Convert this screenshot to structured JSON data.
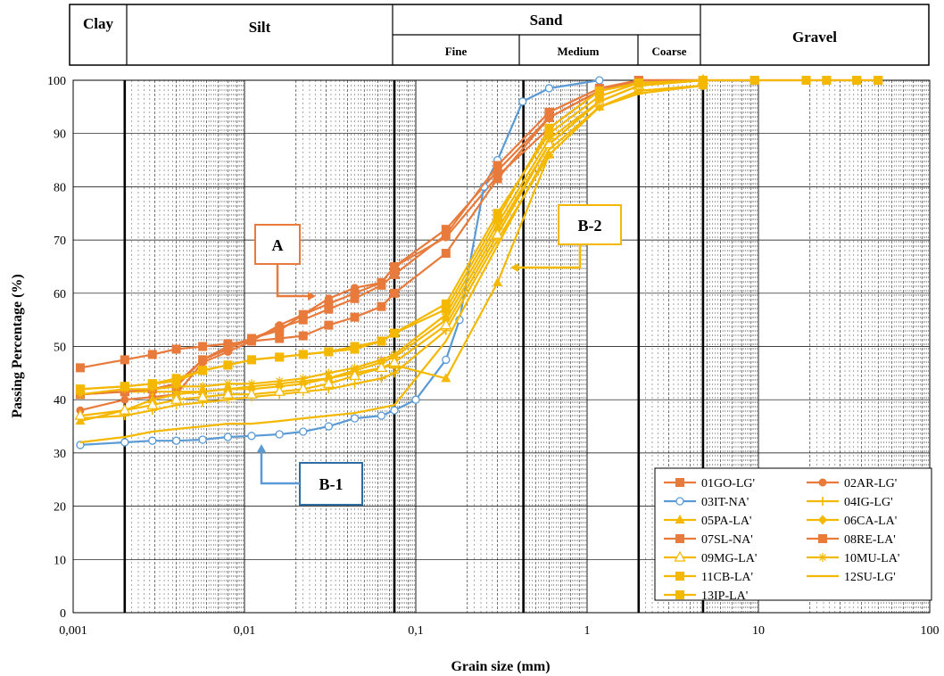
{
  "chart_data": {
    "type": "line",
    "title": "",
    "xlabel": "Grain size (mm)",
    "ylabel": "Passing Percentage (%)",
    "xscale": "log",
    "xlim": [
      0.001,
      100
    ],
    "ylim": [
      0,
      100
    ],
    "x_tick_labels": [
      "0,001",
      "0,01",
      "0,1",
      "1",
      "10",
      "100"
    ],
    "y_tick_labels": [
      "0",
      "10",
      "20",
      "30",
      "40",
      "50",
      "60",
      "70",
      "80",
      "90",
      "100"
    ],
    "grid": true,
    "classification": {
      "clay": "Clay",
      "silt": "Silt",
      "sand": "Sand",
      "fine": "Fine",
      "medium": "Medium",
      "coarse": "Coarse",
      "gravel": "Gravel",
      "boundaries_mm": [
        0.002,
        0.075,
        0.425,
        2,
        4.75
      ]
    },
    "annotations": [
      {
        "label": "A",
        "color": "#e87a3c"
      },
      {
        "label": "B-2",
        "color": "#f5b800"
      },
      {
        "label": "B-1",
        "color": "#5b9bd5"
      }
    ],
    "legend_position": "bottom-right",
    "series": [
      {
        "name": "01GO-LG'",
        "color": "#e87a3c",
        "marker": "square",
        "x": [
          0.0011,
          0.002,
          0.0029,
          0.004,
          0.0057,
          0.008,
          0.011,
          0.016,
          0.022,
          0.031,
          0.044,
          0.063,
          0.075,
          0.15,
          0.3,
          0.6,
          1.18,
          2,
          4.75,
          9.5,
          19,
          25,
          37.5,
          50
        ],
        "y": [
          41,
          41.5,
          42,
          43,
          47.5,
          50,
          51.5,
          53,
          56,
          58,
          60,
          62,
          65,
          72,
          83,
          93,
          98,
          99.5,
          100,
          100,
          100,
          100,
          100,
          100
        ]
      },
      {
        "name": "02AR-LG'",
        "color": "#e87a3c",
        "marker": "circle",
        "x": [
          0.0011,
          0.002,
          0.0029,
          0.004,
          0.0057,
          0.008,
          0.011,
          0.016,
          0.022,
          0.031,
          0.044,
          0.063,
          0.075,
          0.15,
          0.3,
          0.6,
          1.18,
          2,
          4.75
        ],
        "y": [
          38,
          40,
          40.5,
          41,
          47,
          49,
          51,
          54,
          56,
          59,
          61,
          62,
          65,
          70.5,
          82,
          91,
          98,
          100,
          100
        ]
      },
      {
        "name": "03IT-NA'",
        "color": "#5b9bd5",
        "marker": "circle-open",
        "x": [
          0.0011,
          0.002,
          0.0029,
          0.004,
          0.0057,
          0.008,
          0.011,
          0.016,
          0.022,
          0.031,
          0.044,
          0.063,
          0.075,
          0.1,
          0.15,
          0.18,
          0.25,
          0.3,
          0.42,
          0.6,
          1.18
        ],
        "y": [
          31.5,
          32,
          32.3,
          32.3,
          32.5,
          33,
          33.2,
          33.5,
          34,
          35,
          36.5,
          37,
          38,
          40,
          47.5,
          55,
          80,
          85,
          96,
          98.5,
          100
        ]
      },
      {
        "name": "04IG-LG'",
        "color": "#f5b800",
        "marker": "plus",
        "x": [
          0.0011,
          0.002,
          0.0029,
          0.004,
          0.0057,
          0.008,
          0.011,
          0.016,
          0.022,
          0.031,
          0.044,
          0.063,
          0.075,
          0.15,
          0.3,
          0.6,
          1.18,
          2,
          4.75
        ],
        "y": [
          36.5,
          37,
          38,
          39,
          39.5,
          40,
          40.5,
          41,
          41.5,
          42,
          43,
          44,
          45,
          53,
          70,
          86,
          95,
          98,
          99
        ]
      },
      {
        "name": "05PA-LA'",
        "color": "#f5b800",
        "marker": "triangle",
        "x": [
          0.0011,
          0.002,
          0.0029,
          0.004,
          0.0057,
          0.008,
          0.011,
          0.016,
          0.022,
          0.031,
          0.044,
          0.063,
          0.075,
          0.15,
          0.3,
          0.6,
          1.18,
          2,
          4.75
        ],
        "y": [
          36,
          38,
          40,
          41,
          41.5,
          42,
          42.5,
          43,
          43.5,
          44,
          45,
          46,
          46.5,
          44,
          62,
          86,
          95,
          98,
          99
        ]
      },
      {
        "name": "06CA-LA'",
        "color": "#f5b800",
        "marker": "diamond",
        "x": [
          0.0011,
          0.002,
          0.0029,
          0.004,
          0.0057,
          0.008,
          0.011,
          0.016,
          0.022,
          0.031,
          0.044,
          0.063,
          0.075,
          0.15,
          0.3,
          0.6,
          1.18,
          2,
          4.75
        ],
        "y": [
          41,
          41.5,
          41.5,
          41.5,
          41.5,
          42,
          42,
          42.5,
          43,
          44,
          45.5,
          47,
          48,
          55,
          72,
          88,
          96,
          99,
          100
        ]
      },
      {
        "name": "07SL-NA'",
        "color": "#e87a3c",
        "marker": "square",
        "x": [
          0.0011,
          0.002,
          0.0029,
          0.004,
          0.0057,
          0.008,
          0.011,
          0.016,
          0.022,
          0.031,
          0.044,
          0.063,
          0.075,
          0.15,
          0.3,
          0.6,
          1.18,
          2,
          4.75
        ],
        "y": [
          46,
          47.5,
          48.5,
          49.5,
          50,
          50.5,
          51,
          51.5,
          52,
          54,
          55.5,
          57.5,
          60,
          67.5,
          81.5,
          93,
          98,
          100,
          100
        ]
      },
      {
        "name": "08RE-LA'",
        "color": "#e87a3c",
        "marker": "square",
        "x": [
          0.0011,
          0.002,
          0.0029,
          0.004,
          0.0057,
          0.008,
          0.011,
          0.016,
          0.022,
          0.031,
          0.044,
          0.063,
          0.075,
          0.15,
          0.3,
          0.6,
          1.18,
          2,
          4.75
        ],
        "y": [
          41,
          41.5,
          42,
          42.5,
          47.5,
          49.5,
          51.5,
          53.5,
          55,
          57,
          59,
          61.5,
          63.5,
          71,
          84,
          94,
          98.5,
          100,
          100
        ]
      },
      {
        "name": "09MG-LA'",
        "color": "#f5b800",
        "marker": "triangle-open",
        "x": [
          0.0011,
          0.002,
          0.0029,
          0.004,
          0.0057,
          0.008,
          0.011,
          0.016,
          0.022,
          0.031,
          0.044,
          0.063,
          0.075,
          0.15,
          0.3,
          0.6,
          1.18,
          2,
          4.75
        ],
        "y": [
          37,
          38,
          39,
          40,
          40.5,
          41,
          41,
          41.5,
          42,
          43,
          44.5,
          46,
          47,
          54,
          71,
          88,
          96,
          99,
          100
        ]
      },
      {
        "name": "10MU-LA'",
        "color": "#f5b800",
        "marker": "star",
        "x": [
          0.0011,
          0.002,
          0.0029,
          0.004,
          0.0057,
          0.008,
          0.011,
          0.016,
          0.022,
          0.031,
          0.044,
          0.063,
          0.075,
          0.15,
          0.3,
          0.6,
          1.18,
          2,
          4.75
        ],
        "y": [
          41,
          42,
          42,
          42.5,
          42.5,
          43,
          43,
          43.5,
          44,
          45,
          46,
          47.5,
          48.5,
          56,
          73,
          89,
          96,
          99,
          100
        ]
      },
      {
        "name": "11CB-LA'",
        "color": "#f5b800",
        "marker": "square",
        "x": [
          0.0011,
          0.002,
          0.0029,
          0.004,
          0.0057,
          0.008,
          0.011,
          0.016,
          0.022,
          0.031,
          0.044,
          0.063,
          0.075,
          0.15,
          0.3,
          0.6,
          1.18,
          2,
          4.75
        ],
        "y": [
          42,
          42.5,
          43,
          43.5,
          45.5,
          46.5,
          47.5,
          48,
          48.5,
          49,
          50,
          51,
          52.5,
          58,
          75,
          90,
          97,
          99.5,
          100
        ]
      },
      {
        "name": "12SU-LG'",
        "color": "#f5b800",
        "marker": "none",
        "x": [
          0.0011,
          0.002,
          0.0029,
          0.004,
          0.0057,
          0.008,
          0.011,
          0.016,
          0.022,
          0.031,
          0.044,
          0.063,
          0.075,
          0.15,
          0.3,
          0.6,
          1.18,
          2,
          4.75
        ],
        "y": [
          32,
          33,
          34,
          34.5,
          35,
          35.5,
          35.5,
          36,
          36.5,
          37,
          37.5,
          38.5,
          39,
          51,
          69,
          87,
          95,
          97.5,
          99
        ]
      },
      {
        "name": "13IP-LA'",
        "color": "#f5b800",
        "marker": "square",
        "x": [
          0.0011,
          0.002,
          0.0029,
          0.004,
          0.0057,
          0.008,
          0.011,
          0.016,
          0.022,
          0.031,
          0.044,
          0.063,
          0.075,
          0.15,
          0.3,
          0.6,
          1.18,
          2,
          4.75,
          9.5,
          19,
          25,
          37.5,
          50
        ],
        "y": [
          42,
          42.5,
          43,
          44,
          45.5,
          46.5,
          47.5,
          48,
          48.5,
          49,
          49.5,
          51,
          52.5,
          57,
          74,
          91,
          98,
          99.5,
          100,
          100,
          100,
          100,
          100,
          100
        ]
      }
    ]
  }
}
